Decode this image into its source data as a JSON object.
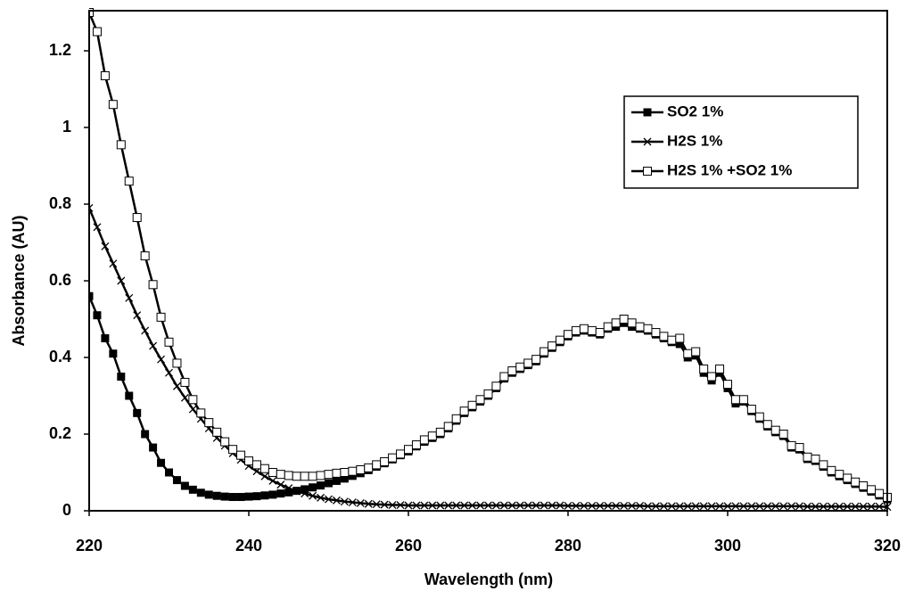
{
  "chart_data": {
    "type": "line",
    "x_label": "Wavelength (nm)",
    "y_label": "Absorbance (AU)",
    "x": [
      220,
      221,
      222,
      223,
      224,
      225,
      226,
      227,
      228,
      229,
      230,
      231,
      232,
      233,
      234,
      235,
      236,
      237,
      238,
      239,
      240,
      241,
      242,
      243,
      244,
      245,
      246,
      247,
      248,
      249,
      250,
      251,
      252,
      253,
      254,
      255,
      256,
      257,
      258,
      259,
      260,
      261,
      262,
      263,
      264,
      265,
      266,
      267,
      268,
      269,
      270,
      271,
      272,
      273,
      274,
      275,
      276,
      277,
      278,
      279,
      280,
      281,
      282,
      283,
      284,
      285,
      286,
      287,
      288,
      289,
      290,
      291,
      292,
      293,
      294,
      295,
      296,
      297,
      298,
      299,
      300,
      301,
      302,
      303,
      304,
      305,
      306,
      307,
      308,
      309,
      310,
      311,
      312,
      313,
      314,
      315,
      316,
      317,
      318,
      319,
      320
    ],
    "series": [
      {
        "name": "SO2 1%",
        "color": "#000000",
        "marker": "square-filled",
        "values": [
          0.56,
          0.51,
          0.45,
          0.41,
          0.35,
          0.3,
          0.255,
          0.2,
          0.165,
          0.125,
          0.1,
          0.08,
          0.065,
          0.055,
          0.047,
          0.042,
          0.039,
          0.037,
          0.036,
          0.036,
          0.037,
          0.038,
          0.04,
          0.042,
          0.045,
          0.048,
          0.052,
          0.056,
          0.061,
          0.066,
          0.072,
          0.078,
          0.084,
          0.091,
          0.098,
          0.106,
          0.115,
          0.124,
          0.134,
          0.145,
          0.155,
          0.168,
          0.18,
          0.19,
          0.2,
          0.215,
          0.235,
          0.255,
          0.27,
          0.285,
          0.3,
          0.32,
          0.345,
          0.36,
          0.37,
          0.38,
          0.39,
          0.41,
          0.425,
          0.44,
          0.455,
          0.465,
          0.47,
          0.465,
          0.46,
          0.475,
          0.48,
          0.49,
          0.48,
          0.475,
          0.47,
          0.46,
          0.45,
          0.44,
          0.435,
          0.4,
          0.405,
          0.36,
          0.34,
          0.36,
          0.32,
          0.28,
          0.285,
          0.26,
          0.24,
          0.22,
          0.205,
          0.195,
          0.165,
          0.16,
          0.135,
          0.13,
          0.115,
          0.1,
          0.09,
          0.08,
          0.07,
          0.06,
          0.05,
          0.04,
          0.03
        ]
      },
      {
        "name": "H2S 1%",
        "color": "#000000",
        "marker": "x",
        "values": [
          0.79,
          0.74,
          0.69,
          0.645,
          0.6,
          0.555,
          0.51,
          0.47,
          0.43,
          0.395,
          0.36,
          0.325,
          0.295,
          0.265,
          0.24,
          0.215,
          0.19,
          0.17,
          0.15,
          0.133,
          0.117,
          0.103,
          0.09,
          0.078,
          0.068,
          0.059,
          0.051,
          0.045,
          0.039,
          0.034,
          0.03,
          0.027,
          0.024,
          0.022,
          0.02,
          0.018,
          0.017,
          0.016,
          0.015,
          0.015,
          0.014,
          0.014,
          0.014,
          0.014,
          0.014,
          0.014,
          0.014,
          0.014,
          0.014,
          0.014,
          0.014,
          0.014,
          0.014,
          0.014,
          0.014,
          0.014,
          0.014,
          0.014,
          0.014,
          0.014,
          0.013,
          0.013,
          0.013,
          0.013,
          0.013,
          0.013,
          0.013,
          0.013,
          0.013,
          0.013,
          0.012,
          0.012,
          0.012,
          0.012,
          0.012,
          0.012,
          0.012,
          0.012,
          0.012,
          0.012,
          0.012,
          0.012,
          0.012,
          0.012,
          0.012,
          0.012,
          0.012,
          0.012,
          0.012,
          0.012,
          0.011,
          0.011,
          0.011,
          0.011,
          0.011,
          0.011,
          0.011,
          0.011,
          0.011,
          0.011,
          0.01
        ]
      },
      {
        "name": "H2S 1% +SO2 1%",
        "color": "#000000",
        "marker": "square-open",
        "values": [
          1.3,
          1.25,
          1.135,
          1.06,
          0.955,
          0.86,
          0.765,
          0.665,
          0.59,
          0.505,
          0.44,
          0.385,
          0.335,
          0.29,
          0.255,
          0.23,
          0.205,
          0.18,
          0.16,
          0.145,
          0.13,
          0.12,
          0.11,
          0.1,
          0.095,
          0.092,
          0.09,
          0.09,
          0.09,
          0.092,
          0.095,
          0.098,
          0.1,
          0.103,
          0.107,
          0.112,
          0.12,
          0.128,
          0.138,
          0.148,
          0.16,
          0.172,
          0.185,
          0.195,
          0.205,
          0.22,
          0.24,
          0.26,
          0.275,
          0.29,
          0.305,
          0.325,
          0.35,
          0.365,
          0.375,
          0.385,
          0.395,
          0.415,
          0.43,
          0.445,
          0.46,
          0.47,
          0.475,
          0.47,
          0.465,
          0.48,
          0.49,
          0.5,
          0.49,
          0.48,
          0.475,
          0.465,
          0.455,
          0.445,
          0.45,
          0.41,
          0.415,
          0.37,
          0.35,
          0.37,
          0.33,
          0.29,
          0.29,
          0.265,
          0.245,
          0.225,
          0.21,
          0.2,
          0.17,
          0.165,
          0.14,
          0.135,
          0.12,
          0.105,
          0.095,
          0.085,
          0.075,
          0.065,
          0.055,
          0.045,
          0.035
        ]
      }
    ],
    "xlim": [
      220,
      320
    ],
    "ylim": [
      0,
      1.3
    ],
    "xticks": [
      220,
      240,
      260,
      280,
      300,
      320
    ],
    "yticks": [
      0,
      0.2,
      0.4,
      0.6,
      0.8,
      1,
      1.2
    ],
    "grid": false,
    "legend_position": "upper right"
  }
}
